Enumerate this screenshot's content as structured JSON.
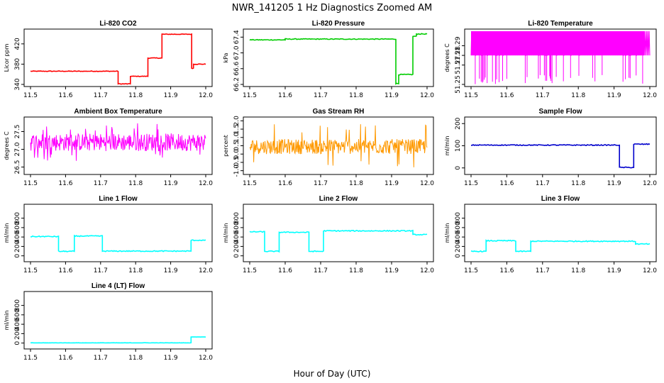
{
  "figure": {
    "title": "NWR_141205  1 Hz Diagnostics Zoomed AM",
    "xlabel": "Hour of Day (UTC)"
  },
  "chart_data": [
    {
      "id": "co2",
      "type": "line",
      "title": "Li-820 CO2",
      "ylabel": "Licor ppm",
      "color": "#ff0000",
      "xlim": [
        11.5,
        12.0
      ],
      "xticks": [
        "11.5",
        "11.6",
        "11.7",
        "11.8",
        "11.9",
        "12.0"
      ],
      "ylim": [
        340,
        445
      ],
      "yticks": [
        340,
        380,
        420
      ],
      "ytick_labels": [
        "340",
        "380",
        "420"
      ],
      "noise": 0.6,
      "segments": [
        {
          "x": [
            11.5,
            11.75
          ],
          "y": 366
        },
        {
          "x": [
            11.75,
            11.785
          ],
          "y": 341
        },
        {
          "x": [
            11.785,
            11.835
          ],
          "y": 356
        },
        {
          "x": [
            11.835,
            11.875
          ],
          "y": 392
        },
        {
          "x": [
            11.875,
            11.96
          ],
          "y": 439
        },
        {
          "x": [
            11.96,
            11.965
          ],
          "y": 372
        },
        {
          "x": [
            11.965,
            12.0
          ],
          "y": 380
        }
      ]
    },
    {
      "id": "pressure",
      "type": "line",
      "title": "Li-820 Pressure",
      "ylabel": "kPa",
      "color": "#00cc00",
      "xlim": [
        11.5,
        12.0
      ],
      "xticks": [
        "11.5",
        "11.6",
        "11.7",
        "11.8",
        "11.9",
        "12.0"
      ],
      "ylim": [
        66.2,
        67.55
      ],
      "yticks": [
        66.2,
        66.6,
        67.0,
        67.4
      ],
      "ytick_labels": [
        "66.2",
        "66.6",
        "67.0",
        "67.4"
      ],
      "noise": 0.01,
      "segments": [
        {
          "x": [
            11.5,
            11.6
          ],
          "y": 67.33
        },
        {
          "x": [
            11.6,
            11.912
          ],
          "y": 67.35
        },
        {
          "x": [
            11.912,
            11.92
          ],
          "y": 66.22
        },
        {
          "x": [
            11.92,
            11.96
          ],
          "y": 66.45
        },
        {
          "x": [
            11.96,
            11.97
          ],
          "y": 67.42
        },
        {
          "x": [
            11.97,
            12.0
          ],
          "y": 67.48
        }
      ]
    },
    {
      "id": "li820temp",
      "type": "line",
      "title": "Li-820 Temperature",
      "ylabel": "degrees C",
      "color": "#ff00ff",
      "xlim": [
        11.5,
        12.0
      ],
      "xticks": [
        "11.5",
        "11.6",
        "11.7",
        "11.8",
        "11.9",
        "12.0"
      ],
      "ylim": [
        51.25,
        51.305
      ],
      "yticks": [
        51.25,
        51.27,
        51.28,
        51.29
      ],
      "ytick_labels": [
        "51.25",
        "51.27",
        "51.28",
        "51.29"
      ],
      "toggle": {
        "levels": [
          51.28,
          51.305
        ],
        "dips_to": 51.25
      }
    },
    {
      "id": "ambbox",
      "type": "line",
      "title": "Ambient Box Temperature",
      "ylabel": "degrees C",
      "color": "#ff00ff",
      "xlim": [
        11.5,
        12.0
      ],
      "xticks": [
        "11.5",
        "11.6",
        "11.7",
        "11.8",
        "11.9",
        "12.0"
      ],
      "ylim": [
        26.35,
        27.85
      ],
      "yticks": [
        26.5,
        27.0,
        27.5
      ],
      "ytick_labels": [
        "26.5",
        "27.0",
        "27.5"
      ],
      "noise_band": {
        "center": 27.2,
        "amp": 0.25,
        "spike": 0.55
      }
    },
    {
      "id": "rh",
      "type": "line",
      "title": "Gas Stream RH",
      "ylabel": "percent",
      "color": "#ff9900",
      "xlim": [
        11.5,
        12.0
      ],
      "xticks": [
        "11.5",
        "11.6",
        "11.7",
        "11.8",
        "11.9",
        "12.0"
      ],
      "ylim": [
        -1.1,
        2.1
      ],
      "yticks": [
        -1.0,
        -0.5,
        0.0,
        0.5,
        1.0,
        1.5,
        2.0
      ],
      "ytick_labels": [
        "-1.0",
        "-0.5",
        "0.0",
        "0.5",
        "1.0",
        "1.5",
        "2.0"
      ],
      "noise_band": {
        "center": 0.45,
        "amp": 0.45,
        "spike": 1.4
      }
    },
    {
      "id": "sampleflow",
      "type": "line",
      "title": "Sample Flow",
      "ylabel": "ml/min",
      "color": "#0000cc",
      "xlim": [
        11.5,
        12.0
      ],
      "xticks": [
        "11.5",
        "11.6",
        "11.7",
        "11.8",
        "11.9",
        "12.0"
      ],
      "ylim": [
        -20,
        220
      ],
      "yticks": [
        0,
        100,
        200
      ],
      "ytick_labels": [
        "0",
        "100",
        "200"
      ],
      "noise": 2,
      "segments": [
        {
          "x": [
            11.5,
            11.915
          ],
          "y": 103
        },
        {
          "x": [
            11.915,
            11.955
          ],
          "y": 2
        },
        {
          "x": [
            11.955,
            12.0
          ],
          "y": 107
        }
      ]
    },
    {
      "id": "line1",
      "type": "line",
      "title": "Line 1 Flow",
      "ylabel": "ml/min",
      "color": "#00ffff",
      "xlim": [
        11.5,
        12.0
      ],
      "xticks": [
        "11.5",
        "11.6",
        "11.7",
        "11.8",
        "11.9",
        "12.0"
      ],
      "ylim": [
        -80,
        1050
      ],
      "yticks": [
        0,
        200,
        400,
        600,
        800
      ],
      "ytick_labels": [
        "0",
        "200",
        "400",
        "600",
        "800"
      ],
      "noise": 10,
      "segments": [
        {
          "x": [
            11.5,
            11.58
          ],
          "y": 410
        },
        {
          "x": [
            11.58,
            11.625
          ],
          "y": 95
        },
        {
          "x": [
            11.625,
            11.705
          ],
          "y": 420
        },
        {
          "x": [
            11.705,
            11.958
          ],
          "y": 100
        },
        {
          "x": [
            11.958,
            12.0
          ],
          "y": 330
        }
      ]
    },
    {
      "id": "line2",
      "type": "line",
      "title": "Line 2 Flow",
      "ylabel": "ml/min",
      "color": "#00ffff",
      "xlim": [
        11.5,
        12.0
      ],
      "xticks": [
        "11.5",
        "11.6",
        "11.7",
        "11.8",
        "11.9",
        "12.0"
      ],
      "ylim": [
        -80,
        1050
      ],
      "yticks": [
        0,
        200,
        400,
        600,
        800
      ],
      "ytick_labels": [
        "0",
        "200",
        "400",
        "600",
        "800"
      ],
      "noise": 10,
      "segments": [
        {
          "x": [
            11.5,
            11.542
          ],
          "y": 510
        },
        {
          "x": [
            11.542,
            11.583
          ],
          "y": 95
        },
        {
          "x": [
            11.583,
            11.667
          ],
          "y": 500
        },
        {
          "x": [
            11.667,
            11.708
          ],
          "y": 95
        },
        {
          "x": [
            11.708,
            11.96
          ],
          "y": 530
        },
        {
          "x": [
            11.96,
            12.0
          ],
          "y": 450
        }
      ]
    },
    {
      "id": "line3",
      "type": "line",
      "title": "Line 3 Flow",
      "ylabel": "ml/min",
      "color": "#00ffff",
      "xlim": [
        11.5,
        12.0
      ],
      "xticks": [
        "11.5",
        "11.6",
        "11.7",
        "11.8",
        "11.9",
        "12.0"
      ],
      "ylim": [
        -80,
        1050
      ],
      "yticks": [
        0,
        200,
        400,
        600,
        800
      ],
      "ytick_labels": [
        "0",
        "200",
        "400",
        "600",
        "800"
      ],
      "noise": 10,
      "segments": [
        {
          "x": [
            11.5,
            11.542
          ],
          "y": 95
        },
        {
          "x": [
            11.542,
            11.625
          ],
          "y": 320
        },
        {
          "x": [
            11.625,
            11.667
          ],
          "y": 95
        },
        {
          "x": [
            11.667,
            11.96
          ],
          "y": 310
        },
        {
          "x": [
            11.96,
            12.0
          ],
          "y": 250
        }
      ]
    },
    {
      "id": "line4",
      "type": "line",
      "title": "Line 4 (LT) Flow",
      "ylabel": "ml/min",
      "color": "#00ffff",
      "xlim": [
        11.5,
        12.0
      ],
      "xticks": [
        "11.5",
        "11.6",
        "11.7",
        "11.8",
        "11.9",
        "12.0"
      ],
      "ylim": [
        -80,
        1050
      ],
      "yticks": [
        0,
        200,
        400,
        600,
        800
      ],
      "ytick_labels": [
        "0",
        "200",
        "400",
        "600",
        "800"
      ],
      "noise": 2,
      "segments": [
        {
          "x": [
            11.5,
            11.958
          ],
          "y": 5
        },
        {
          "x": [
            11.958,
            12.0
          ],
          "y": 130
        }
      ]
    }
  ]
}
